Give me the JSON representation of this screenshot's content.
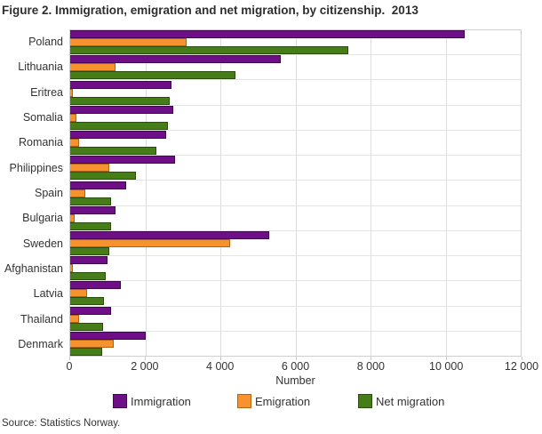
{
  "title": "Figure 2. Immigration, emigration and net migration, by citizenship.  2013",
  "source": "Source: Statistics Norway.",
  "chart_data": {
    "type": "bar",
    "orientation": "horizontal",
    "title": "Figure 2. Immigration, emigration and net migration, by citizenship.  2013",
    "xlabel": "Number",
    "ylabel": "",
    "xlim": [
      0,
      12000
    ],
    "grid": true,
    "legend_position": "bottom",
    "categories": [
      "Poland",
      "Lithuania",
      "Eritrea",
      "Somalia",
      "Romania",
      "Philippines",
      "Spain",
      "Bulgaria",
      "Sweden",
      "Afghanistan",
      "Latvia",
      "Thailand",
      "Denmark"
    ],
    "xticks": [
      0,
      2000,
      4000,
      6000,
      8000,
      10000,
      12000
    ],
    "xtick_labels": [
      "0",
      "2 000",
      "4 000",
      "6 000",
      "8 000",
      "10 000",
      "12 000"
    ],
    "series": [
      {
        "name": "Immigration",
        "color": "#6e0f87",
        "border_color": "#42054f",
        "values": [
          10500,
          5600,
          2700,
          2750,
          2550,
          2800,
          1500,
          1200,
          5300,
          1000,
          1350,
          1100,
          2000
        ]
      },
      {
        "name": "Emigration",
        "color": "#f6932f",
        "border_color": "#b26312",
        "values": [
          3100,
          1200,
          60,
          170,
          225,
          1050,
          400,
          120,
          4250,
          60,
          450,
          225,
          1150
        ]
      },
      {
        "name": "Net migration",
        "color": "#467d19",
        "border_color": "#2a4e0e",
        "values": [
          7400,
          4400,
          2650,
          2600,
          2300,
          1750,
          1100,
          1080,
          1050,
          950,
          900,
          875,
          850
        ]
      }
    ],
    "legend_x_positions": [
      127,
      267,
      403
    ]
  }
}
